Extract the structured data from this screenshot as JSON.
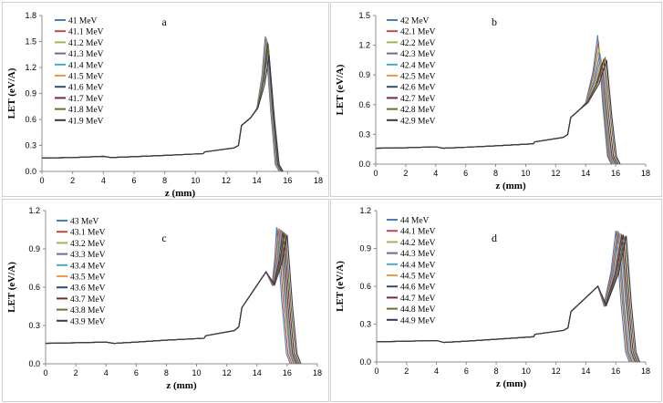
{
  "chart_data": [
    {
      "type": "line",
      "panel": "a",
      "xlabel": "z (mm)",
      "ylabel": "LET (eV/A)",
      "xlim": [
        0,
        18
      ],
      "ylim": [
        0,
        1.8
      ],
      "xticks": [
        "0",
        "2",
        "4",
        "6",
        "8",
        "10",
        "12",
        "14",
        "16",
        "18"
      ],
      "yticks": [
        "0.0",
        "0.3",
        "0.6",
        "0.9",
        "1.2",
        "1.5",
        "1.8"
      ],
      "legend": "top-left",
      "series_names": [
        "41 MeV",
        "41.1 MeV",
        "41.2 MeV",
        "41.3 MeV",
        "41.4 MeV",
        "41.5 MeV",
        "41.6 MeV",
        "41.7 MeV",
        "41.8 MeV",
        "41.9 MeV"
      ],
      "x_peak": [
        14.55,
        14.58,
        14.6,
        14.63,
        14.65,
        14.68,
        14.7,
        14.73,
        14.75,
        14.8
      ],
      "peak_values": [
        1.56,
        1.55,
        1.54,
        1.53,
        1.52,
        1.5,
        1.49,
        1.47,
        1.45,
        1.34
      ],
      "shared_profile": {
        "x": [
          0,
          2,
          4,
          4.5,
          6,
          8,
          10.5,
          10.6,
          12.5,
          12.8,
          13.0,
          13.6,
          14.0
        ],
        "y": [
          0.155,
          0.16,
          0.175,
          0.16,
          0.17,
          0.185,
          0.205,
          0.225,
          0.27,
          0.3,
          0.53,
          0.62,
          0.73
        ]
      }
    },
    {
      "type": "line",
      "panel": "b",
      "xlabel": "z (mm)",
      "ylabel": "LET (eV/A)",
      "xlim": [
        0,
        18
      ],
      "ylim": [
        0,
        1.5
      ],
      "xticks": [
        "0",
        "2",
        "4",
        "6",
        "8",
        "10",
        "12",
        "14",
        "16",
        "18"
      ],
      "yticks": [
        "0.0",
        "0.3",
        "0.6",
        "0.9",
        "1.2",
        "1.5"
      ],
      "legend": "top-left",
      "series_names": [
        "42 MeV",
        "42.1 MeV",
        "42.2 MeV",
        "42.3 MeV",
        "42.4 MeV",
        "42.5 MeV",
        "42.6 MeV",
        "42.7 MeV",
        "42.8 MeV",
        "42.9 MeV"
      ],
      "x_peak": [
        14.8,
        14.85,
        14.9,
        14.95,
        15.0,
        15.05,
        15.1,
        15.2,
        15.3,
        15.4
      ],
      "peak_values": [
        1.3,
        1.24,
        1.18,
        1.12,
        1.08,
        1.05,
        1.02,
        1.06,
        1.08,
        1.05
      ],
      "shared_profile": {
        "x": [
          0,
          2,
          4,
          4.5,
          6,
          8,
          10.5,
          10.6,
          12.5,
          12.8,
          13.0,
          13.6,
          14.0
        ],
        "y": [
          0.16,
          0.165,
          0.175,
          0.16,
          0.17,
          0.185,
          0.205,
          0.225,
          0.27,
          0.3,
          0.47,
          0.55,
          0.62
        ]
      }
    },
    {
      "type": "line",
      "panel": "c",
      "xlabel": "z (mm)",
      "ylabel": "LET (eV/A)",
      "xlim": [
        0,
        18
      ],
      "ylim": [
        0,
        1.2
      ],
      "xticks": [
        "0",
        "2",
        "4",
        "6",
        "8",
        "10",
        "12",
        "14",
        "16",
        "18"
      ],
      "yticks": [
        "0.0",
        "0.3",
        "0.6",
        "0.9",
        "1.2"
      ],
      "legend": "top-left",
      "series_names": [
        "43 MeV",
        "43.1 MeV",
        "43.2 MeV",
        "43.3 MeV",
        "43.4 MeV",
        "43.5 MeV",
        "43.6 MeV",
        "43.7 MeV",
        "43.8 MeV",
        "43.9 MeV"
      ],
      "x_peak": [
        15.3,
        15.4,
        15.5,
        15.55,
        15.6,
        15.65,
        15.7,
        15.8,
        15.9,
        16.0
      ],
      "peak_values": [
        1.07,
        1.06,
        1.06,
        1.05,
        1.05,
        1.04,
        1.04,
        1.03,
        1.02,
        1.01
      ],
      "shared_profile": {
        "x": [
          0,
          2,
          4,
          4.5,
          6,
          8,
          10.5,
          10.6,
          12.5,
          12.8,
          13.0,
          14.6,
          15.0
        ],
        "y": [
          0.16,
          0.165,
          0.17,
          0.16,
          0.17,
          0.185,
          0.2,
          0.22,
          0.26,
          0.29,
          0.44,
          0.72,
          0.62
        ]
      }
    },
    {
      "type": "line",
      "panel": "d",
      "xlabel": "z (mm)",
      "ylabel": "LET (eV/A)",
      "xlim": [
        0,
        18
      ],
      "ylim": [
        0,
        1.2
      ],
      "xticks": [
        "0",
        "2",
        "4",
        "6",
        "8",
        "10",
        "12",
        "14",
        "16",
        "18"
      ],
      "yticks": [
        "0.0",
        "0.3",
        "0.6",
        "0.9",
        "1.2"
      ],
      "legend": "top-left",
      "series_names": [
        "44 MeV",
        "44.1 MeV",
        "44.2 MeV",
        "44.3 MeV",
        "44.4 MeV",
        "44.5 MeV",
        "44.6 MeV",
        "44.7 MeV",
        "44.8 MeV",
        "44.9 MeV"
      ],
      "x_peak": [
        16.0,
        16.1,
        16.15,
        16.2,
        16.3,
        16.35,
        16.4,
        16.5,
        16.6,
        16.7
      ],
      "peak_values": [
        1.04,
        1.04,
        1.03,
        1.03,
        1.02,
        1.02,
        1.01,
        1.01,
        1.0,
        1.0
      ],
      "shared_profile": {
        "x": [
          0,
          2,
          4,
          4.5,
          6,
          8,
          10.5,
          10.6,
          12.5,
          12.8,
          13.0,
          14.8,
          15.2
        ],
        "y": [
          0.16,
          0.165,
          0.17,
          0.155,
          0.165,
          0.18,
          0.2,
          0.22,
          0.25,
          0.27,
          0.4,
          0.6,
          0.45
        ]
      }
    }
  ],
  "colors": [
    "#4a7ebb",
    "#be4b48",
    "#98b954",
    "#7d60a0",
    "#46aac5",
    "#f79646",
    "#2c4d75",
    "#772c2a",
    "#5f7530",
    "#403152"
  ]
}
